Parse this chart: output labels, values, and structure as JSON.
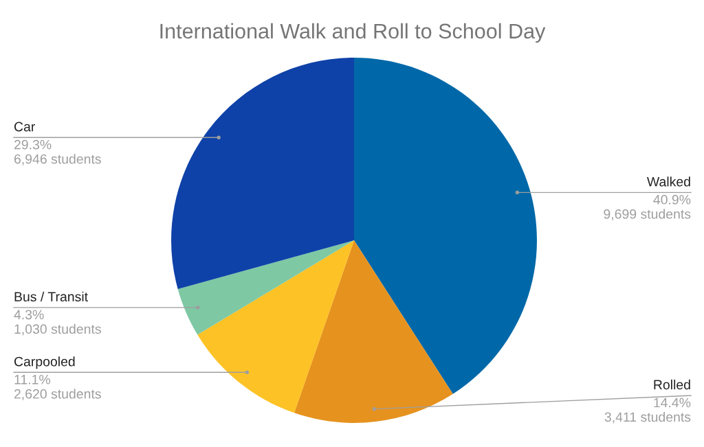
{
  "chart_data": {
    "type": "pie",
    "title": "International Walk and Roll to School Day",
    "categories": [
      "Walked",
      "Rolled",
      "Carpooled",
      "Bus / Transit",
      "Car"
    ],
    "values": [
      9699,
      3411,
      2620,
      1030,
      6946
    ],
    "colors": [
      "#0068a8",
      "#e6921e",
      "#fdc225",
      "#7ec8a4",
      "#0f42a8"
    ],
    "value_labels": [
      "40.9%\n9,699 students",
      "14.4%\n3,411 students",
      "11.1%\n2,620 students",
      "4.3%\n1,030 students",
      "29.3%\n6,946 students"
    ],
    "legend": false
  }
}
